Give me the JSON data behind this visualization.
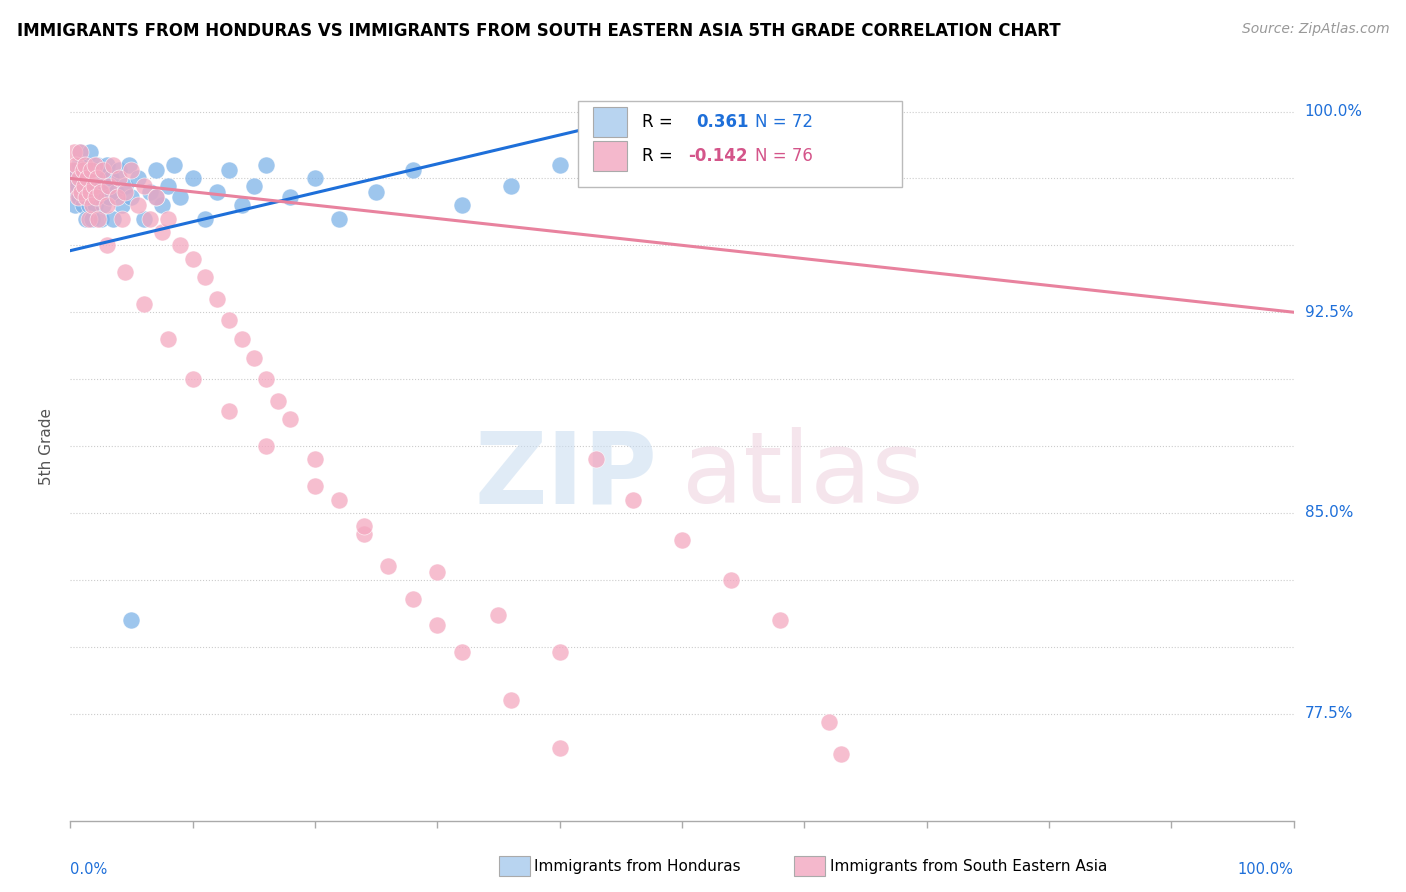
{
  "title": "IMMIGRANTS FROM HONDURAS VS IMMIGRANTS FROM SOUTH EASTERN ASIA 5TH GRADE CORRELATION CHART",
  "source_text": "Source: ZipAtlas.com",
  "ylabel": "5th Grade",
  "r_blue": 0.361,
  "n_blue": 72,
  "r_pink": -0.142,
  "n_pink": 76,
  "xlim": [
    0.0,
    1.0
  ],
  "ylim": [
    0.735,
    1.015
  ],
  "ytick_vals": [
    0.775,
    0.8,
    0.825,
    0.85,
    0.875,
    0.9,
    0.925,
    0.95,
    0.975,
    1.0
  ],
  "ytick_labeled": {
    "0.775": "77.5%",
    "0.850": "85.0%",
    "0.925": "92.5%",
    "1.000": "100.0%"
  },
  "blue_color": "#7EB3E8",
  "pink_color": "#F4A8C0",
  "blue_line_color": "#1E6FD9",
  "pink_line_color": "#E8829E",
  "legend_box_blue": "#B8D4F0",
  "legend_box_pink": "#F4B8CC",
  "background_color": "#FFFFFF",
  "blue_scatter_x": [
    0.002,
    0.003,
    0.004,
    0.005,
    0.006,
    0.007,
    0.007,
    0.008,
    0.008,
    0.009,
    0.01,
    0.01,
    0.011,
    0.012,
    0.012,
    0.013,
    0.013,
    0.014,
    0.015,
    0.015,
    0.016,
    0.016,
    0.017,
    0.018,
    0.018,
    0.019,
    0.02,
    0.02,
    0.021,
    0.022,
    0.023,
    0.024,
    0.025,
    0.025,
    0.026,
    0.027,
    0.028,
    0.03,
    0.032,
    0.033,
    0.035,
    0.037,
    0.04,
    0.042,
    0.045,
    0.048,
    0.05,
    0.055,
    0.06,
    0.065,
    0.07,
    0.075,
    0.08,
    0.085,
    0.09,
    0.1,
    0.11,
    0.12,
    0.13,
    0.14,
    0.15,
    0.16,
    0.18,
    0.2,
    0.22,
    0.25,
    0.28,
    0.32,
    0.36,
    0.4,
    0.05,
    0.07
  ],
  "blue_scatter_y": [
    0.97,
    0.975,
    0.965,
    0.978,
    0.972,
    0.98,
    0.968,
    0.975,
    0.985,
    0.97,
    0.978,
    0.965,
    0.972,
    0.98,
    0.968,
    0.975,
    0.96,
    0.97,
    0.978,
    0.965,
    0.972,
    0.985,
    0.968,
    0.975,
    0.96,
    0.97,
    0.978,
    0.965,
    0.972,
    0.98,
    0.968,
    0.975,
    0.96,
    0.97,
    0.978,
    0.965,
    0.972,
    0.98,
    0.968,
    0.975,
    0.96,
    0.97,
    0.978,
    0.965,
    0.972,
    0.98,
    0.968,
    0.975,
    0.96,
    0.97,
    0.978,
    0.965,
    0.972,
    0.98,
    0.968,
    0.975,
    0.96,
    0.97,
    0.978,
    0.965,
    0.972,
    0.98,
    0.968,
    0.975,
    0.96,
    0.97,
    0.978,
    0.965,
    0.972,
    0.98,
    0.81,
    0.968
  ],
  "pink_scatter_x": [
    0.002,
    0.003,
    0.004,
    0.005,
    0.006,
    0.007,
    0.008,
    0.009,
    0.01,
    0.011,
    0.012,
    0.013,
    0.014,
    0.015,
    0.016,
    0.017,
    0.018,
    0.019,
    0.02,
    0.021,
    0.022,
    0.023,
    0.025,
    0.027,
    0.03,
    0.032,
    0.035,
    0.038,
    0.04,
    0.042,
    0.045,
    0.05,
    0.055,
    0.06,
    0.065,
    0.07,
    0.075,
    0.08,
    0.09,
    0.1,
    0.11,
    0.12,
    0.13,
    0.14,
    0.15,
    0.16,
    0.17,
    0.18,
    0.2,
    0.22,
    0.24,
    0.26,
    0.28,
    0.3,
    0.32,
    0.36,
    0.4,
    0.43,
    0.46,
    0.5,
    0.54,
    0.58,
    0.03,
    0.045,
    0.06,
    0.08,
    0.1,
    0.13,
    0.16,
    0.2,
    0.24,
    0.3,
    0.35,
    0.4,
    0.62,
    0.63
  ],
  "pink_scatter_y": [
    0.978,
    0.985,
    0.972,
    0.98,
    0.968,
    0.975,
    0.985,
    0.97,
    0.978,
    0.972,
    0.98,
    0.968,
    0.975,
    0.96,
    0.97,
    0.978,
    0.965,
    0.972,
    0.98,
    0.968,
    0.975,
    0.96,
    0.97,
    0.978,
    0.965,
    0.972,
    0.98,
    0.968,
    0.975,
    0.96,
    0.97,
    0.978,
    0.965,
    0.972,
    0.96,
    0.968,
    0.955,
    0.96,
    0.95,
    0.945,
    0.938,
    0.93,
    0.922,
    0.915,
    0.908,
    0.9,
    0.892,
    0.885,
    0.87,
    0.855,
    0.842,
    0.83,
    0.818,
    0.808,
    0.798,
    0.78,
    0.762,
    0.87,
    0.855,
    0.84,
    0.825,
    0.81,
    0.95,
    0.94,
    0.928,
    0.915,
    0.9,
    0.888,
    0.875,
    0.86,
    0.845,
    0.828,
    0.812,
    0.798,
    0.772,
    0.76
  ],
  "blue_trend_x": [
    0.0,
    0.5
  ],
  "blue_trend_y": [
    0.948,
    1.002
  ],
  "pink_trend_x": [
    0.0,
    1.0
  ],
  "pink_trend_y": [
    0.975,
    0.925
  ]
}
